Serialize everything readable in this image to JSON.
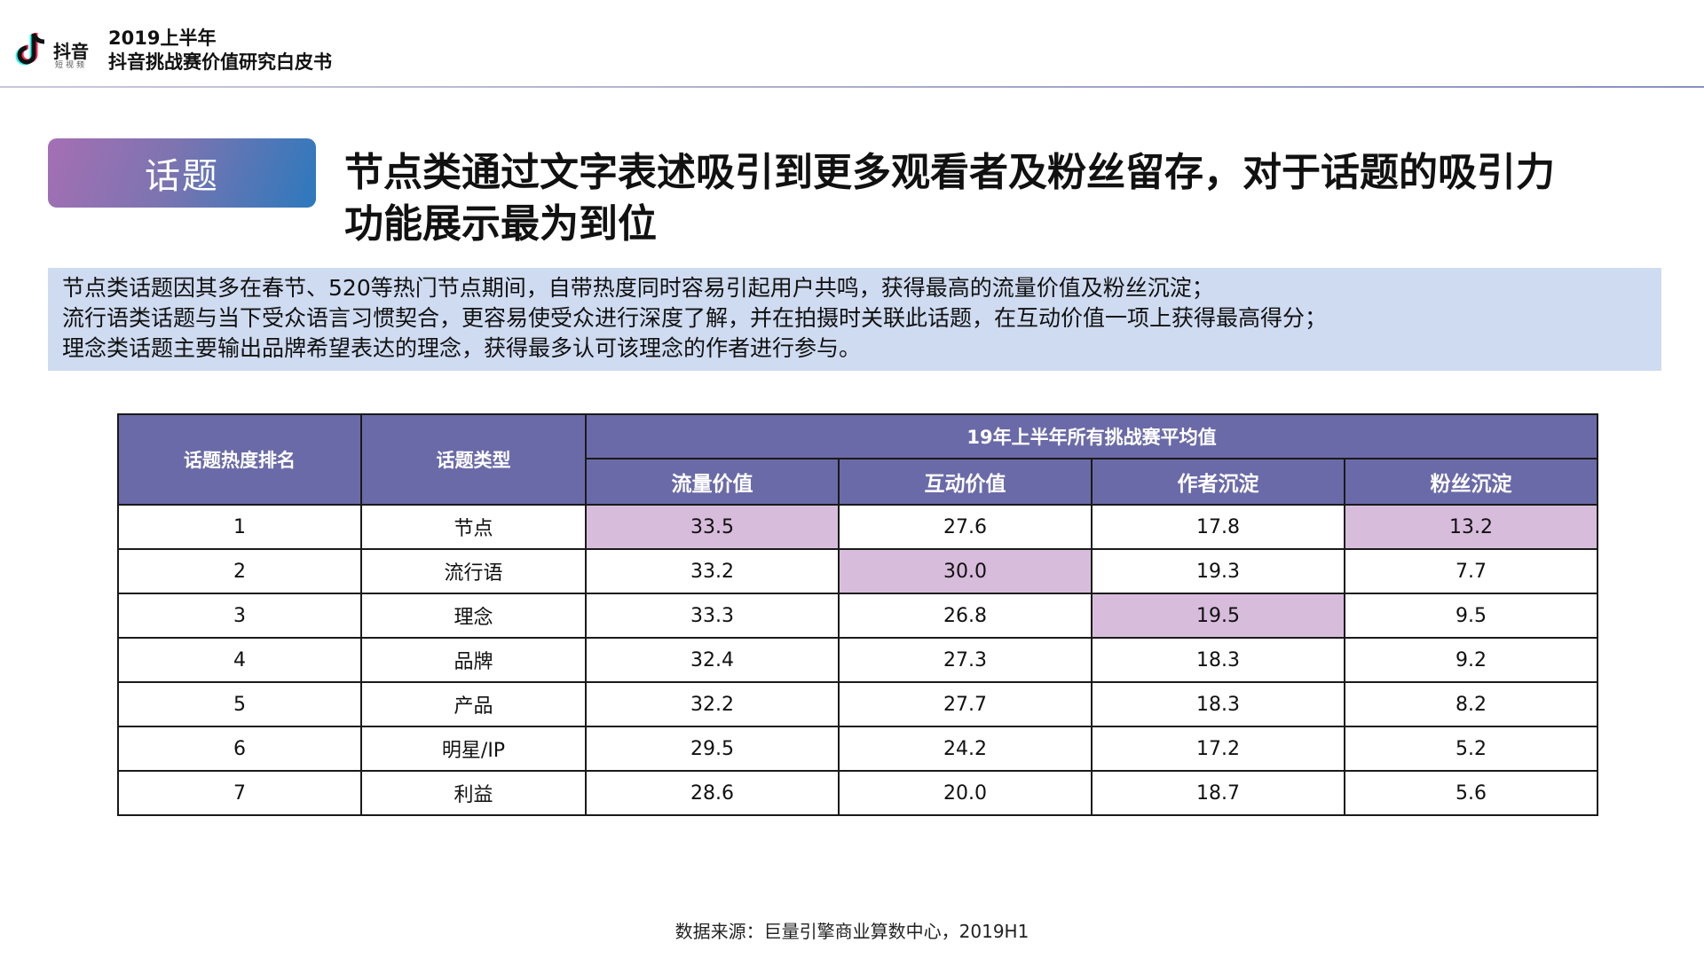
{
  "header": {
    "logo_text": "抖音",
    "logo_sub": "短视频",
    "report_year": "2019上半年",
    "report_title": "抖音挑战赛价值研究白皮书"
  },
  "topic_badge": "话题",
  "headline": "节点类通过文字表述吸引到更多观看者及粉丝留存，对于话题的吸引力功能展示最为到位",
  "summary": [
    "节点类话题因其多在春节、520等热门节点期间，自带热度同时容易引起用户共鸣，获得最高的流量价值及粉丝沉淀；",
    "流行语类话题与当下受众语言习惯契合，更容易使受众进行深度了解，并在拍摄时关联此话题，在互动价值一项上获得最高得分；",
    "理念类话题主要输出品牌希望表达的理念，获得最多认可该理念的作者进行参与。"
  ],
  "table": {
    "col_rank": "话题热度排名",
    "col_type": "话题类型",
    "group_header": "19年上半年所有挑战赛平均值",
    "metrics": [
      "流量价值",
      "互动价值",
      "作者沉淀",
      "粉丝沉淀"
    ],
    "rows": [
      {
        "rank": "1",
        "type": "节点",
        "values": [
          "33.5",
          "27.6",
          "17.8",
          "13.2"
        ],
        "highlight": [
          true,
          false,
          false,
          true
        ]
      },
      {
        "rank": "2",
        "type": "流行语",
        "values": [
          "33.2",
          "30.0",
          "19.3",
          "7.7"
        ],
        "highlight": [
          false,
          true,
          false,
          false
        ]
      },
      {
        "rank": "3",
        "type": "理念",
        "values": [
          "33.3",
          "26.8",
          "19.5",
          "9.5"
        ],
        "highlight": [
          false,
          false,
          true,
          false
        ]
      },
      {
        "rank": "4",
        "type": "品牌",
        "values": [
          "32.4",
          "27.3",
          "18.3",
          "9.2"
        ],
        "highlight": [
          false,
          false,
          false,
          false
        ]
      },
      {
        "rank": "5",
        "type": "产品",
        "values": [
          "32.2",
          "27.7",
          "18.3",
          "8.2"
        ],
        "highlight": [
          false,
          false,
          false,
          false
        ]
      },
      {
        "rank": "6",
        "type": "明星/IP",
        "values": [
          "29.5",
          "24.2",
          "17.2",
          "5.2"
        ],
        "highlight": [
          false,
          false,
          false,
          false
        ]
      },
      {
        "rank": "7",
        "type": "利益",
        "values": [
          "28.6",
          "20.0",
          "18.7",
          "5.6"
        ],
        "highlight": [
          false,
          false,
          false,
          false
        ]
      }
    ]
  },
  "source": "数据来源：巨量引擎商业算数中心，2019H1",
  "colors": {
    "header_fill": "#6b6aa8",
    "highlight_fill": "#d8bcdc",
    "summary_fill": "#cfdbf0"
  }
}
